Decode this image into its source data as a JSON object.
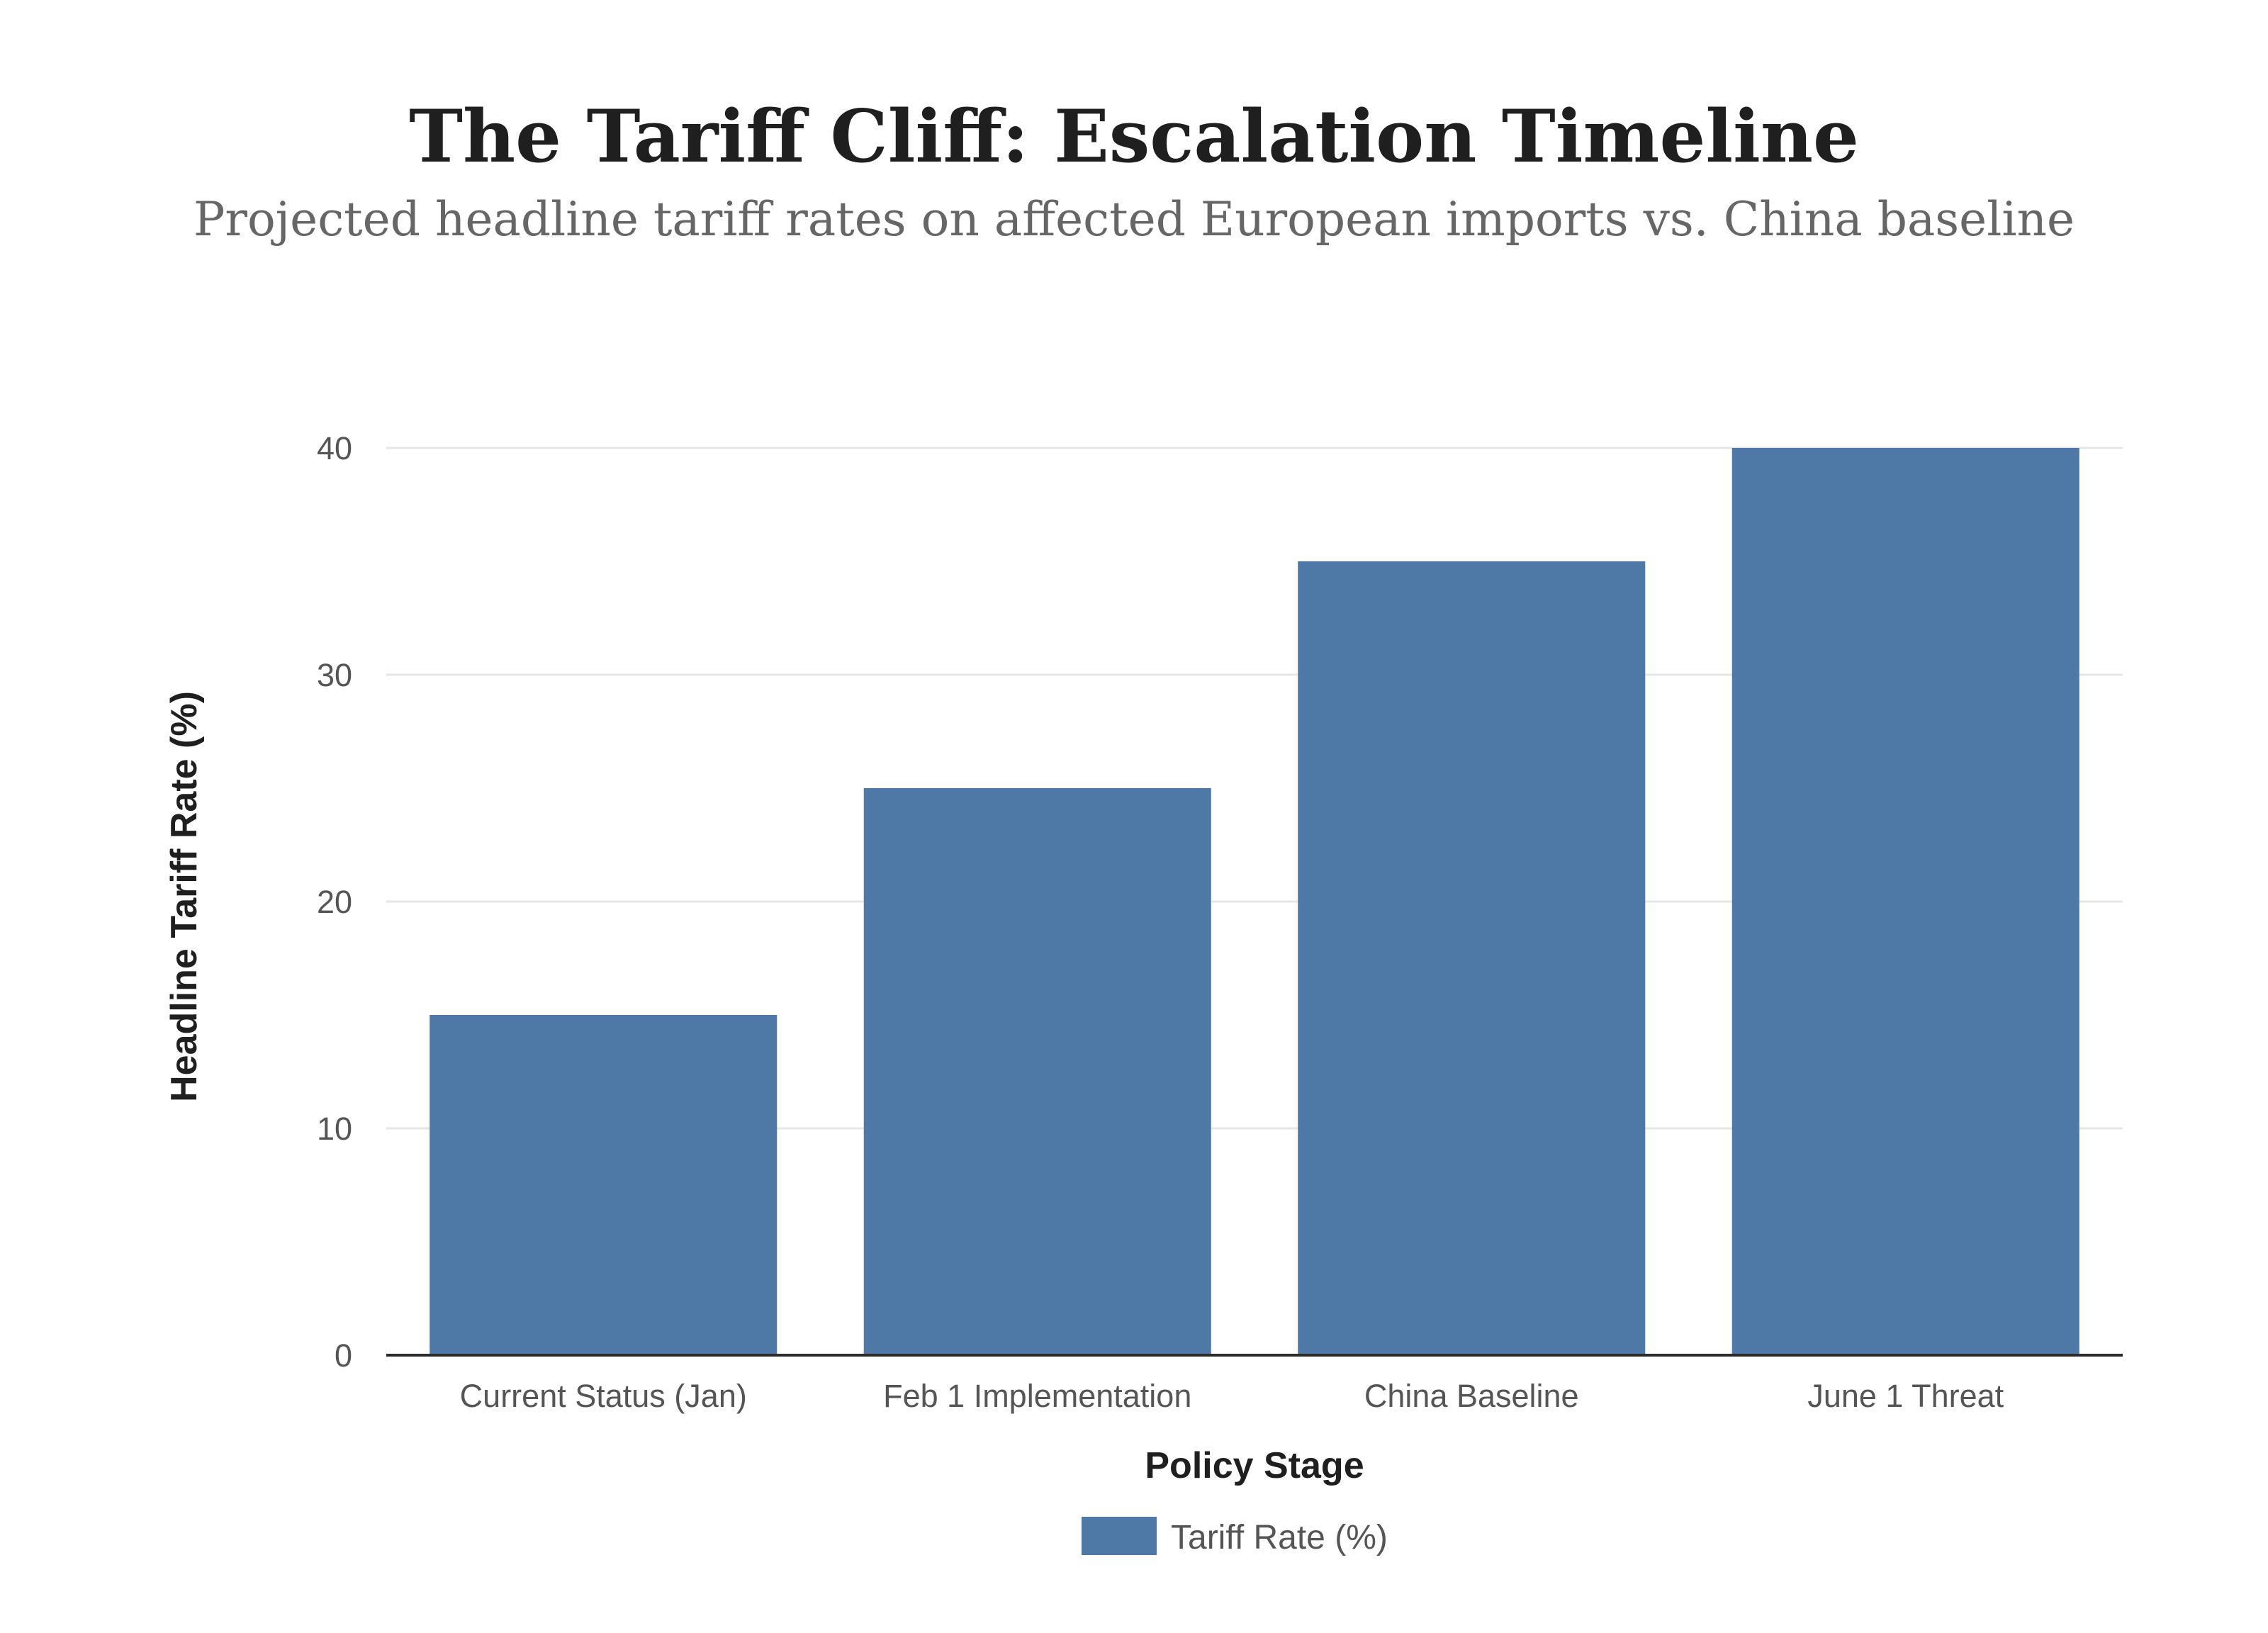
{
  "chart_data": {
    "type": "bar",
    "title": "The Tariff Cliff: Escalation Timeline",
    "subtitle": "Projected headline tariff rates on affected European imports vs. China baseline",
    "xlabel": "Policy Stage",
    "ylabel": "Headline Tariff Rate (%)",
    "categories": [
      "Current Status (Jan)",
      "Feb 1 Implementation",
      "China Baseline",
      "June 1 Threat"
    ],
    "series": [
      {
        "name": "Tariff Rate (%)",
        "values": [
          15,
          25,
          35,
          40
        ],
        "color": "#4e78a6"
      }
    ],
    "ylim": [
      0,
      40
    ],
    "yticks": [
      0,
      10,
      20,
      30,
      40
    ],
    "grid": true,
    "legend_position": "bottom-center"
  }
}
